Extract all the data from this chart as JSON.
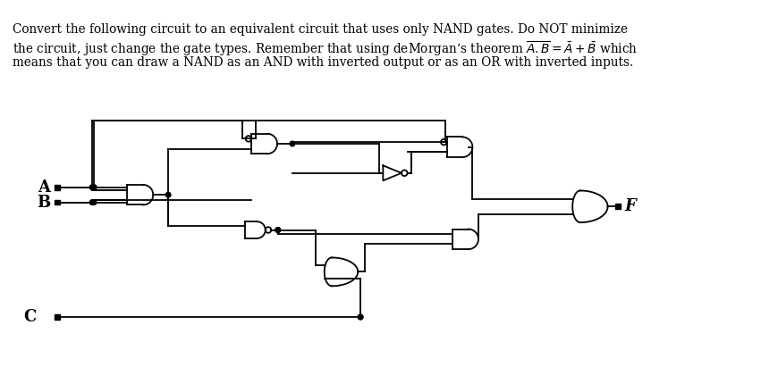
{
  "bg_color": "#ffffff",
  "text_line1": "Convert the following circuit to an equivalent circuit that uses only NAND gates. Do NOT minimize",
  "text_line2": "the circuit, just change the gate types. Remember that using deMorgan’s theorem $\\overline{A.B} = \\bar{A} + \\bar{B}$ which",
  "text_line3": "means that you can draw a NAND as an AND with inverted output or as an OR with inverted inputs.",
  "lw": 1.3,
  "dot_r": 3.0,
  "bubble_r": 3.5,
  "font_size_text": 9.8,
  "font_size_label": 13
}
